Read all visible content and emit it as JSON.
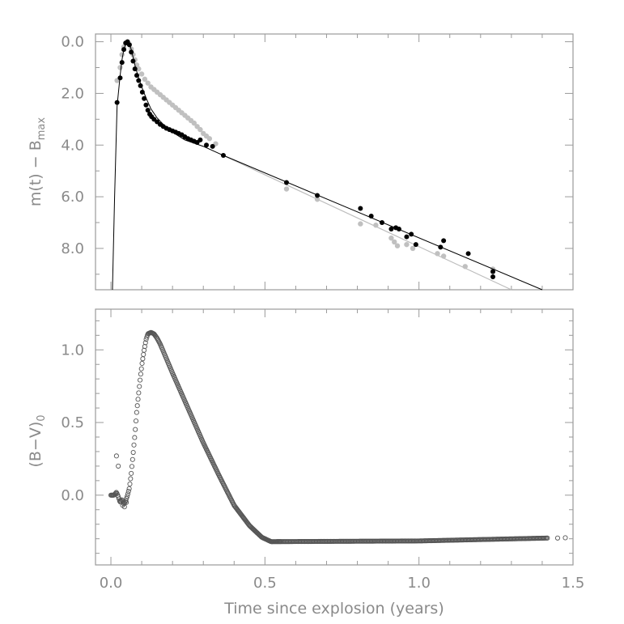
{
  "chart_data": [
    {
      "type": "scatter",
      "title": "",
      "xlabel": "",
      "ylabel_main": "m(t) − B",
      "ylabel_sub": "max",
      "xlim": [
        -0.05,
        1.5
      ],
      "ylim": [
        9.6,
        -0.3
      ],
      "y_inverted": true,
      "grid": false,
      "yticks": [
        0.0,
        2.0,
        4.0,
        6.0,
        8.0
      ],
      "ytick_labels": [
        "0.0",
        "2.0",
        "4.0",
        "6.0",
        "8.0"
      ],
      "series": [
        {
          "color": "#000000",
          "marker": "filled-circle",
          "points": [
            [
              0.02,
              2.35
            ],
            [
              0.03,
              1.4
            ],
            [
              0.036,
              0.8
            ],
            [
              0.042,
              0.3
            ],
            [
              0.048,
              0.05
            ],
            [
              0.054,
              0.0
            ],
            [
              0.06,
              0.12
            ],
            [
              0.066,
              0.4
            ],
            [
              0.072,
              0.75
            ],
            [
              0.078,
              1.05
            ],
            [
              0.084,
              1.3
            ],
            [
              0.09,
              1.5
            ],
            [
              0.096,
              1.7
            ],
            [
              0.102,
              1.95
            ],
            [
              0.108,
              2.2
            ],
            [
              0.114,
              2.45
            ],
            [
              0.12,
              2.65
            ],
            [
              0.126,
              2.8
            ],
            [
              0.132,
              2.9
            ],
            [
              0.14,
              3.0
            ],
            [
              0.15,
              3.1
            ],
            [
              0.16,
              3.2
            ],
            [
              0.17,
              3.28
            ],
            [
              0.18,
              3.35
            ],
            [
              0.19,
              3.4
            ],
            [
              0.2,
              3.45
            ],
            [
              0.21,
              3.5
            ],
            [
              0.22,
              3.55
            ],
            [
              0.23,
              3.6
            ],
            [
              0.24,
              3.68
            ],
            [
              0.25,
              3.75
            ],
            [
              0.26,
              3.8
            ],
            [
              0.27,
              3.85
            ],
            [
              0.28,
              3.9
            ],
            [
              0.29,
              3.8
            ],
            [
              0.31,
              4.0
            ],
            [
              0.33,
              4.05
            ],
            [
              0.365,
              4.4
            ],
            [
              0.57,
              5.45
            ],
            [
              0.67,
              5.95
            ],
            [
              0.81,
              6.45
            ],
            [
              0.845,
              6.75
            ],
            [
              0.88,
              7.0
            ],
            [
              0.91,
              7.25
            ],
            [
              0.925,
              7.2
            ],
            [
              0.935,
              7.25
            ],
            [
              0.96,
              7.55
            ],
            [
              0.975,
              7.45
            ],
            [
              0.99,
              7.85
            ],
            [
              1.07,
              7.95
            ],
            [
              1.08,
              7.7
            ],
            [
              1.16,
              8.2
            ],
            [
              1.24,
              8.9
            ],
            [
              1.24,
              9.1
            ]
          ]
        },
        {
          "color": "#c0c0c0",
          "marker": "filled-circle",
          "points": [
            [
              0.02,
              1.5
            ],
            [
              0.03,
              1.0
            ],
            [
              0.036,
              0.5
            ],
            [
              0.042,
              0.2
            ],
            [
              0.048,
              0.05
            ],
            [
              0.054,
              0.0
            ],
            [
              0.06,
              0.1
            ],
            [
              0.066,
              0.28
            ],
            [
              0.072,
              0.5
            ],
            [
              0.078,
              0.7
            ],
            [
              0.084,
              0.9
            ],
            [
              0.09,
              1.05
            ],
            [
              0.1,
              1.25
            ],
            [
              0.11,
              1.45
            ],
            [
              0.12,
              1.6
            ],
            [
              0.13,
              1.75
            ],
            [
              0.14,
              1.85
            ],
            [
              0.15,
              1.95
            ],
            [
              0.16,
              2.05
            ],
            [
              0.17,
              2.15
            ],
            [
              0.18,
              2.25
            ],
            [
              0.19,
              2.35
            ],
            [
              0.2,
              2.45
            ],
            [
              0.21,
              2.55
            ],
            [
              0.22,
              2.65
            ],
            [
              0.23,
              2.75
            ],
            [
              0.24,
              2.85
            ],
            [
              0.25,
              2.95
            ],
            [
              0.26,
              3.05
            ],
            [
              0.27,
              3.15
            ],
            [
              0.28,
              3.28
            ],
            [
              0.29,
              3.4
            ],
            [
              0.3,
              3.55
            ],
            [
              0.31,
              3.65
            ],
            [
              0.32,
              3.75
            ],
            [
              0.34,
              3.95
            ],
            [
              0.57,
              5.7
            ],
            [
              0.67,
              6.1
            ],
            [
              0.81,
              7.05
            ],
            [
              0.86,
              7.1
            ],
            [
              0.91,
              7.6
            ],
            [
              0.92,
              7.75
            ],
            [
              0.93,
              7.9
            ],
            [
              0.96,
              7.85
            ],
            [
              0.98,
              8.0
            ],
            [
              1.06,
              8.2
            ],
            [
              1.08,
              8.3
            ],
            [
              1.15,
              8.7
            ],
            [
              1.24,
              8.8
            ]
          ]
        }
      ],
      "line_fit": {
        "color": "#000000",
        "points": [
          [
            0.005,
            9.6
          ],
          [
            0.012,
            6.0
          ],
          [
            0.02,
            2.5
          ],
          [
            0.03,
            1.3
          ],
          [
            0.036,
            0.7
          ],
          [
            0.042,
            0.3
          ],
          [
            0.048,
            0.08
          ],
          [
            0.054,
            0.0
          ],
          [
            0.06,
            0.08
          ],
          [
            0.066,
            0.3
          ],
          [
            0.072,
            0.6
          ],
          [
            0.08,
            1.0
          ],
          [
            0.09,
            1.4
          ],
          [
            0.1,
            1.75
          ],
          [
            0.115,
            2.2
          ],
          [
            0.13,
            2.6
          ],
          [
            0.15,
            2.95
          ],
          [
            0.17,
            3.2
          ],
          [
            0.2,
            3.5
          ],
          [
            0.24,
            3.8
          ],
          [
            0.3,
            4.05
          ],
          [
            0.365,
            4.4
          ],
          [
            1.4,
            9.6
          ]
        ]
      },
      "line_fit_gray": {
        "color": "#bdbdbd",
        "points": [
          [
            0.365,
            4.4
          ],
          [
            1.3,
            9.6
          ]
        ]
      }
    },
    {
      "type": "scatter",
      "title": "",
      "xlabel": "Time since explosion (years)",
      "ylabel_main": "(B−V)",
      "ylabel_sub": "0",
      "xlim": [
        -0.05,
        1.5
      ],
      "ylim": [
        -0.48,
        1.28
      ],
      "grid": false,
      "xticks": [
        0.0,
        0.5,
        1.0,
        1.5
      ],
      "xtick_labels": [
        "0.0",
        "0.5",
        "1.0",
        "1.5"
      ],
      "yticks": [
        0.0,
        0.5,
        1.0
      ],
      "ytick_labels": [
        "0.0",
        "0.5",
        "1.0"
      ],
      "series": [
        {
          "marker": "open-circle",
          "color": "#555555",
          "curve": [
            [
              0.0,
              0.0
            ],
            [
              0.01,
              0.0
            ],
            [
              0.018,
              0.02
            ],
            [
              0.024,
              -0.01
            ],
            [
              0.03,
              -0.05
            ],
            [
              0.036,
              -0.03
            ],
            [
              0.042,
              -0.06
            ],
            [
              0.048,
              -0.04
            ],
            [
              0.054,
              0.0
            ],
            [
              0.06,
              0.05
            ],
            [
              0.066,
              0.15
            ],
            [
              0.072,
              0.28
            ],
            [
              0.078,
              0.42
            ],
            [
              0.084,
              0.58
            ],
            [
              0.09,
              0.7
            ],
            [
              0.096,
              0.82
            ],
            [
              0.102,
              0.92
            ],
            [
              0.108,
              1.0
            ],
            [
              0.114,
              1.07
            ],
            [
              0.12,
              1.11
            ],
            [
              0.13,
              1.12
            ],
            [
              0.14,
              1.11
            ],
            [
              0.15,
              1.08
            ],
            [
              0.16,
              1.04
            ],
            [
              0.17,
              0.99
            ],
            [
              0.2,
              0.84
            ],
            [
              0.25,
              0.6
            ],
            [
              0.3,
              0.36
            ],
            [
              0.35,
              0.14
            ],
            [
              0.4,
              -0.07
            ],
            [
              0.45,
              -0.21
            ],
            [
              0.49,
              -0.29
            ],
            [
              0.52,
              -0.32
            ],
            [
              1.0,
              -0.315
            ],
            [
              1.42,
              -0.295
            ]
          ],
          "extra_points": [
            [
              0.018,
              0.27
            ],
            [
              0.024,
              0.2
            ],
            [
              0.03,
              -0.04
            ],
            [
              0.038,
              -0.07
            ],
            [
              0.044,
              -0.08
            ],
            [
              0.05,
              -0.05
            ],
            [
              1.45,
              -0.295
            ],
            [
              1.475,
              -0.293
            ]
          ]
        }
      ]
    }
  ]
}
